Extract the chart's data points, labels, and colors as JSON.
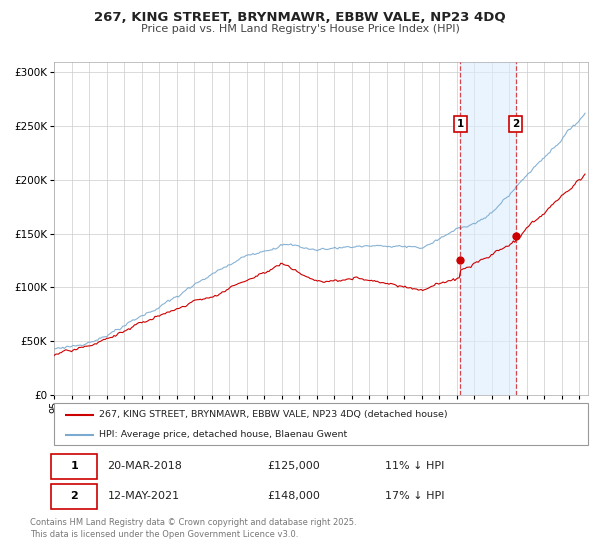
{
  "title_line1": "267, KING STREET, BRYNMAWR, EBBW VALE, NP23 4DQ",
  "title_line2": "Price paid vs. HM Land Registry's House Price Index (HPI)",
  "legend_label_red": "267, KING STREET, BRYNMAWR, EBBW VALE, NP23 4DQ (detached house)",
  "legend_label_blue": "HPI: Average price, detached house, Blaenau Gwent",
  "transaction1_date": "20-MAR-2018",
  "transaction1_price": "£125,000",
  "transaction1_hpi": "11% ↓ HPI",
  "transaction1_year": 2018.21,
  "transaction1_price_val": 125000,
  "transaction2_date": "12-MAY-2021",
  "transaction2_price": "£148,000",
  "transaction2_hpi": "17% ↓ HPI",
  "transaction2_year": 2021.37,
  "transaction2_price_val": 148000,
  "footer": "Contains HM Land Registry data © Crown copyright and database right 2025.\nThis data is licensed under the Open Government Licence v3.0.",
  "ylim": [
    0,
    310000
  ],
  "xlim_start": 1995.0,
  "xlim_end": 2025.5,
  "red_color": "#cc0000",
  "blue_color": "#7aaad0",
  "bg_color": "#ffffff",
  "grid_color": "#cccccc",
  "vline_color": "#cc0000",
  "highlight_bg": "#ddeeff"
}
